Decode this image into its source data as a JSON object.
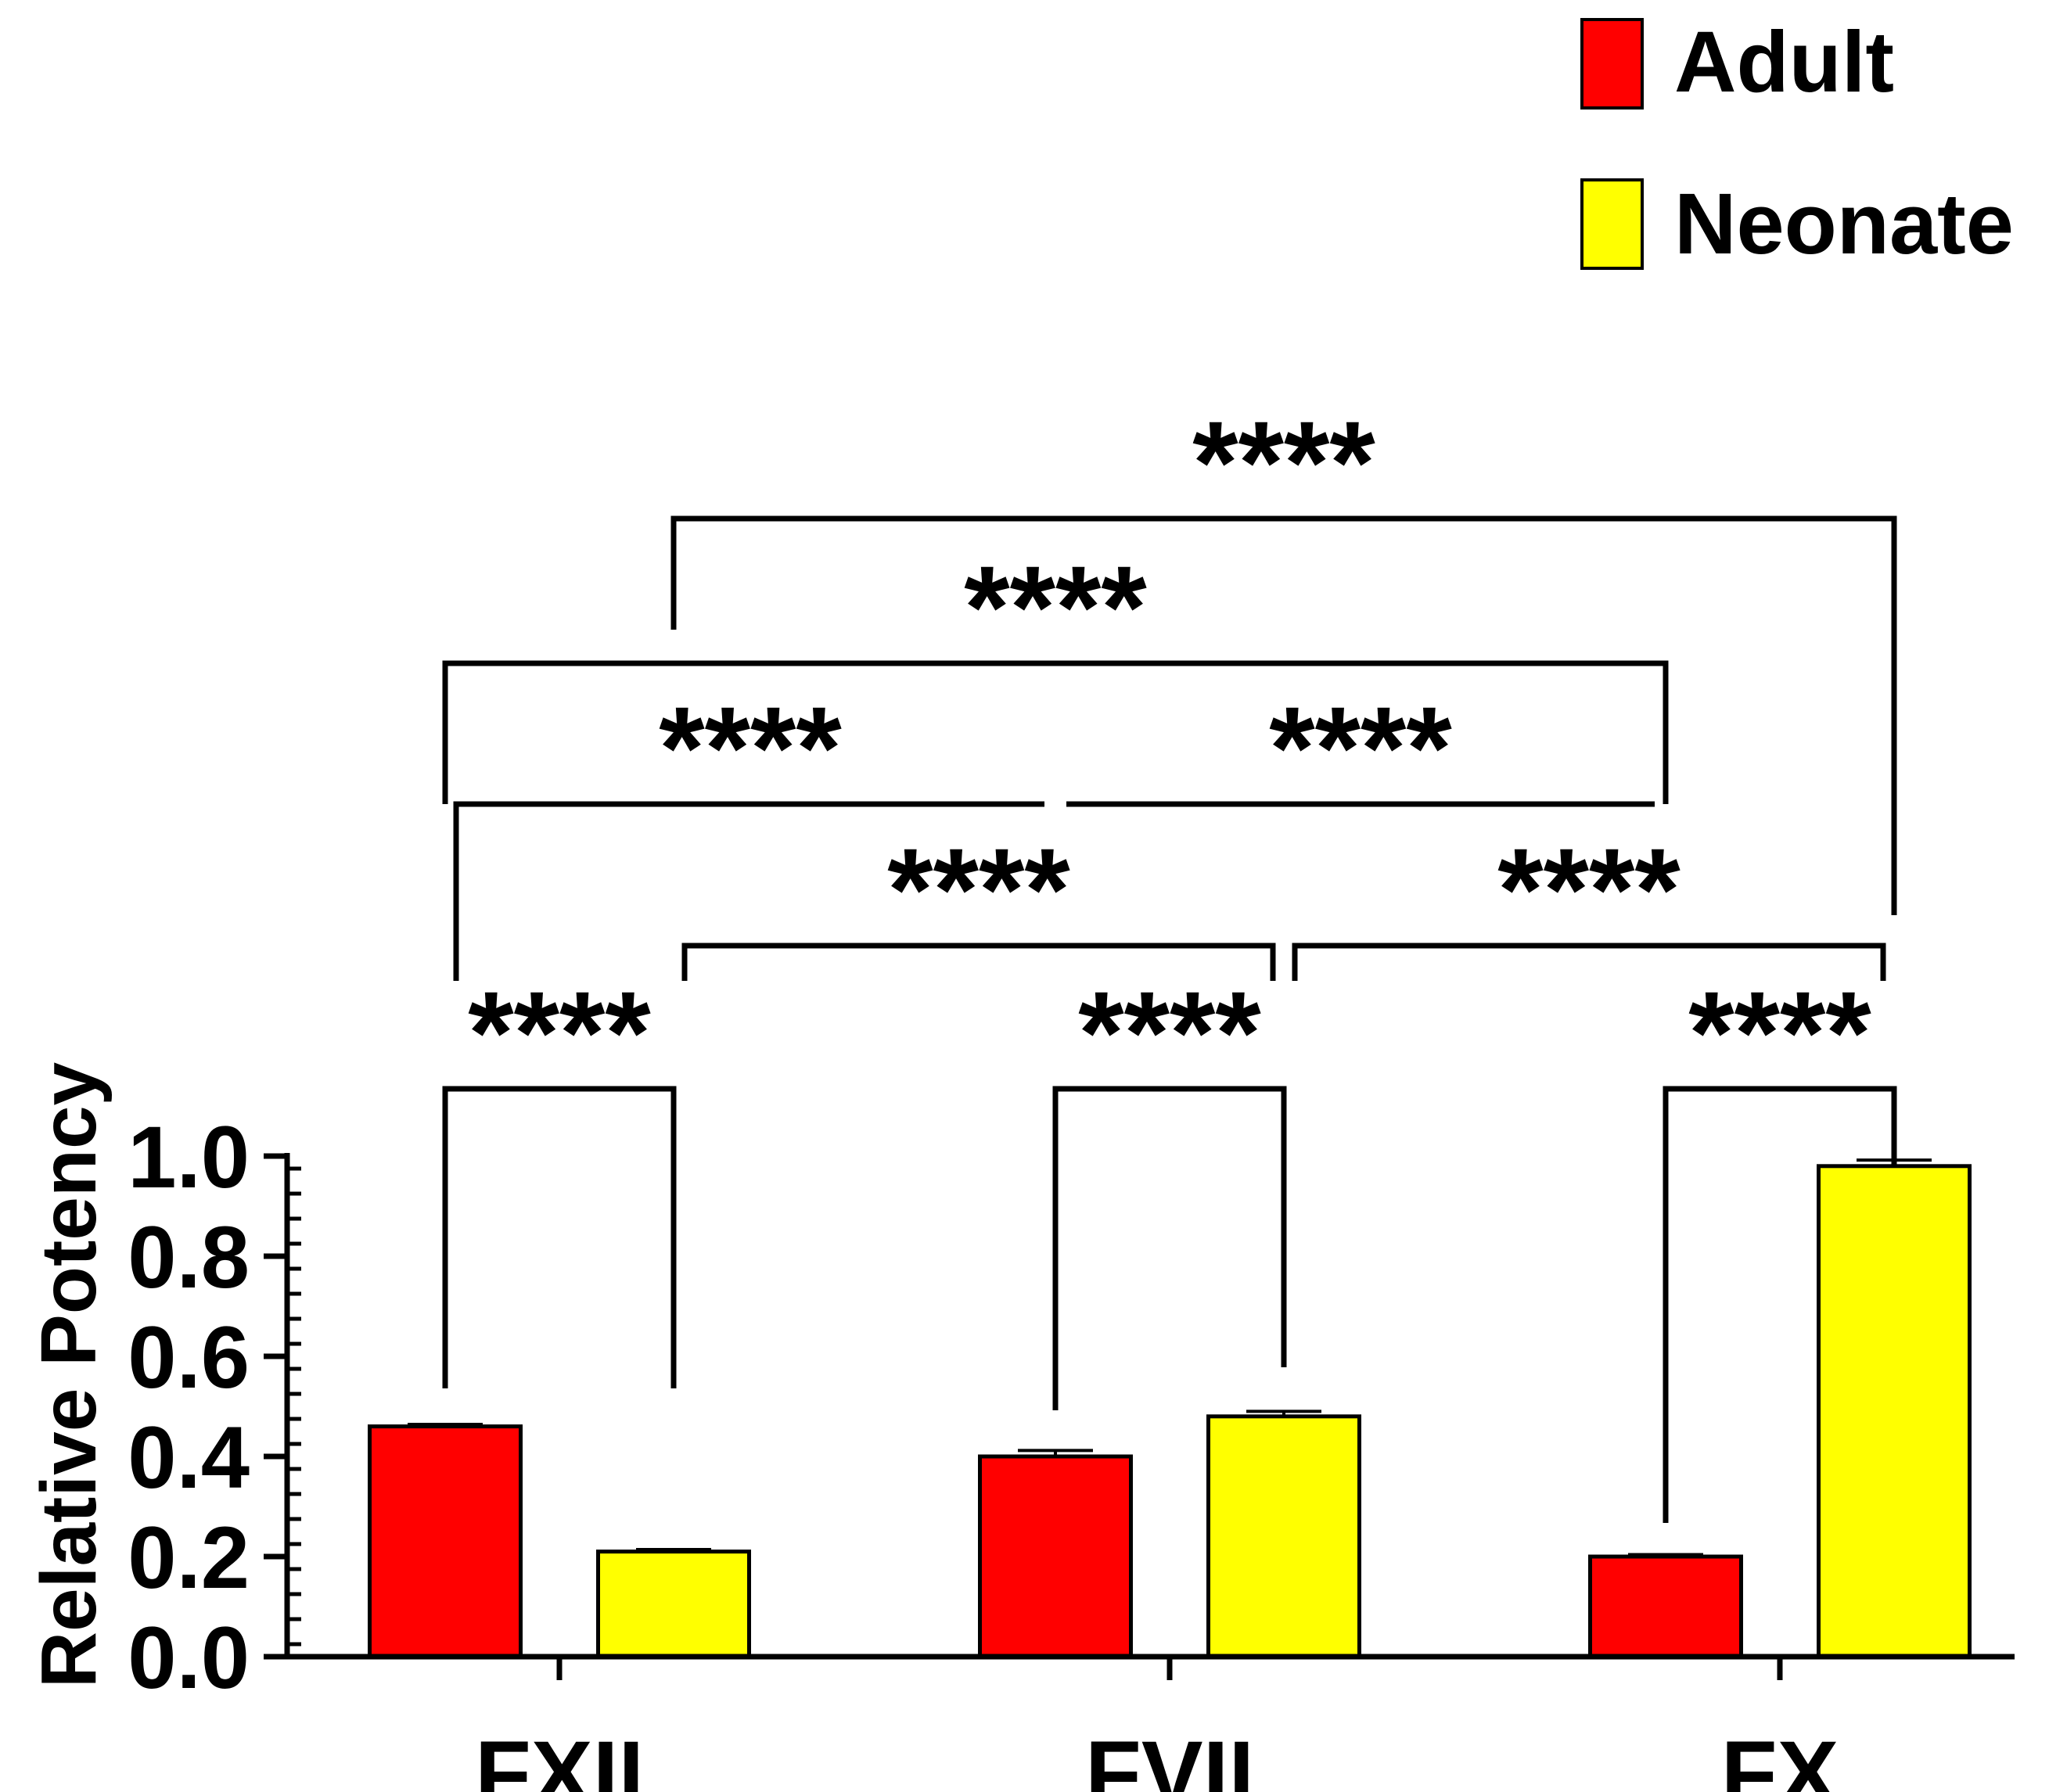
{
  "chart_data": {
    "type": "bar",
    "title": "",
    "xlabel": "",
    "ylabel": "Relative Potency",
    "ylim": [
      0,
      1.0
    ],
    "yticks": [
      0.0,
      0.2,
      0.4,
      0.6,
      0.8,
      1.0
    ],
    "ytick_labels": [
      "0.0",
      "0.2",
      "0.4",
      "0.6",
      "0.8",
      "1.0"
    ],
    "grid": false,
    "legend_position": "top-right",
    "categories": [
      "FXII",
      "FVII",
      "FX"
    ],
    "series": [
      {
        "name": "Adult",
        "color": "#ff0000",
        "values": [
          0.46,
          0.4,
          0.2
        ],
        "errors": [
          0.004,
          0.012,
          0.004
        ]
      },
      {
        "name": "Neonate",
        "color": "#ffff00",
        "values": [
          0.21,
          0.48,
          0.98
        ],
        "errors": [
          0.004,
          0.01,
          0.012
        ]
      }
    ],
    "comparisons": [
      {
        "from": [
          0,
          0
        ],
        "to": [
          0,
          1
        ],
        "label": "****"
      },
      {
        "from": [
          1,
          0
        ],
        "to": [
          1,
          1
        ],
        "label": "****"
      },
      {
        "from": [
          2,
          0
        ],
        "to": [
          2,
          1
        ],
        "label": "****"
      },
      {
        "from": [
          0,
          1
        ],
        "to": [
          1,
          1
        ],
        "label": "****"
      },
      {
        "from": [
          1,
          1
        ],
        "to": [
          2,
          1
        ],
        "label": "****"
      },
      {
        "from": [
          0,
          0
        ],
        "to": [
          1,
          0
        ],
        "label": "****"
      },
      {
        "from": [
          1,
          0
        ],
        "to": [
          2,
          0
        ],
        "label": "****"
      },
      {
        "from": [
          0,
          0
        ],
        "to": [
          2,
          0
        ],
        "label": "****"
      },
      {
        "from": [
          0,
          1
        ],
        "to": [
          2,
          1
        ],
        "label": "****"
      }
    ]
  }
}
